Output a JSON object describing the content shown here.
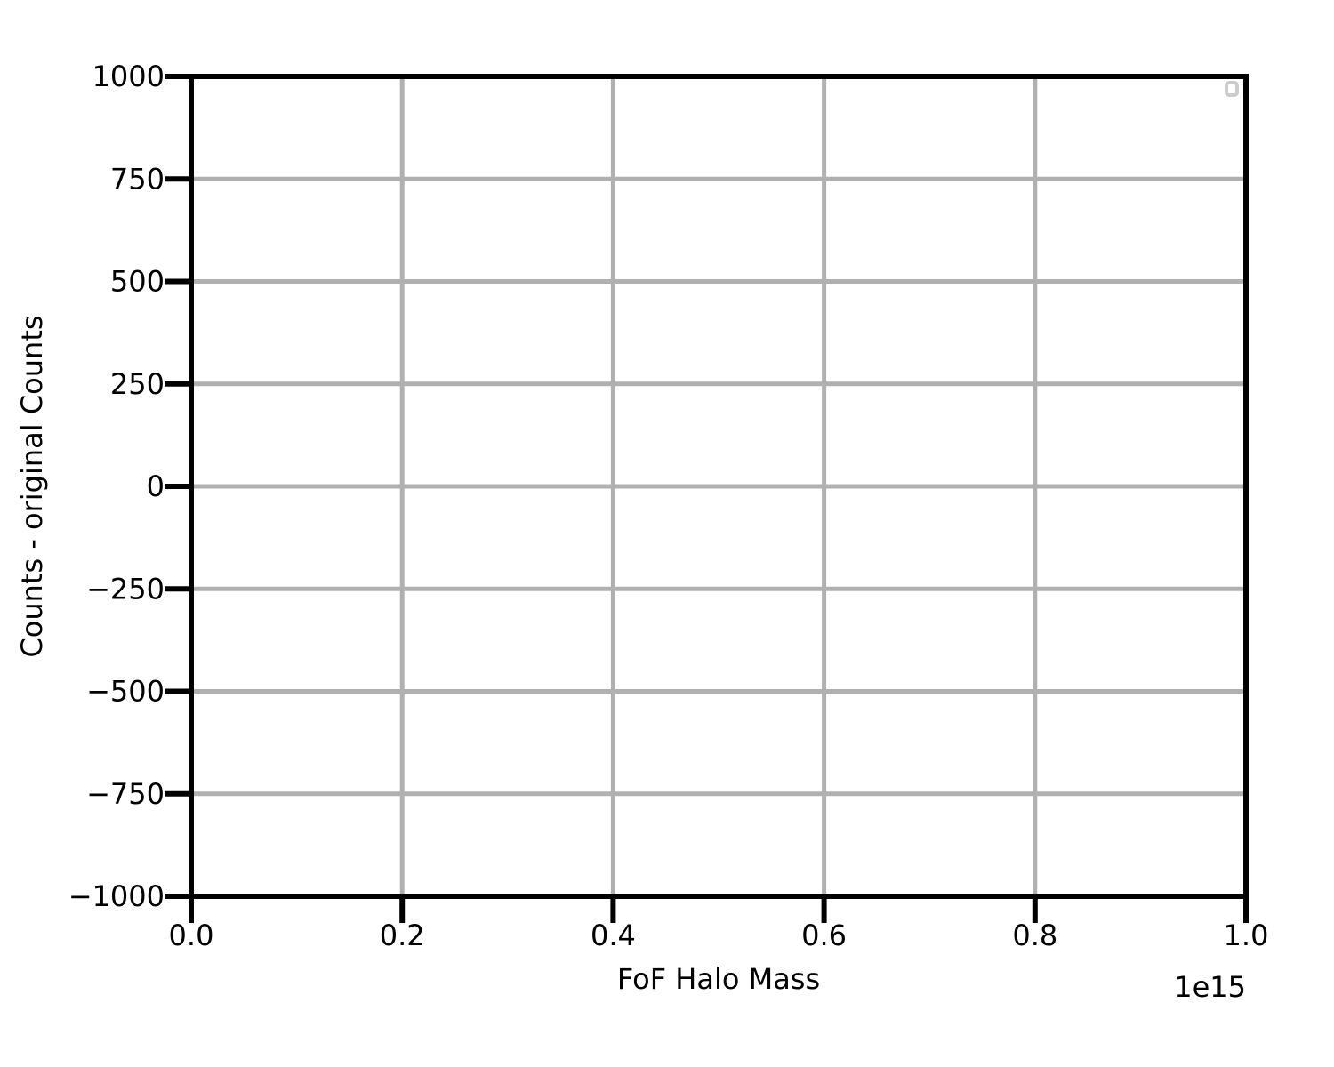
{
  "chart_data": {
    "type": "line",
    "title": "",
    "xlabel": "FoF Halo Mass",
    "ylabel": "Counts - original Counts",
    "x_offset_label": "1e15",
    "xlim": [
      0.0,
      1.0
    ],
    "ylim": [
      -1000,
      1000
    ],
    "x_ticks": [
      0.0,
      0.2,
      0.4,
      0.6,
      0.8,
      1.0
    ],
    "x_tick_labels": [
      "0.0",
      "0.2",
      "0.4",
      "0.6",
      "0.8",
      "1.0"
    ],
    "y_ticks": [
      -1000,
      -750,
      -500,
      -250,
      0,
      250,
      500,
      750,
      1000
    ],
    "y_tick_labels": [
      "−1000",
      "−750",
      "−500",
      "−250",
      "0",
      "250",
      "500",
      "750",
      "1000"
    ],
    "grid": true,
    "legend": "top-right",
    "series": [],
    "colors": {
      "grid": "#b0b0b0",
      "axes": "#000000",
      "legend_frame": "#cccccc"
    }
  }
}
